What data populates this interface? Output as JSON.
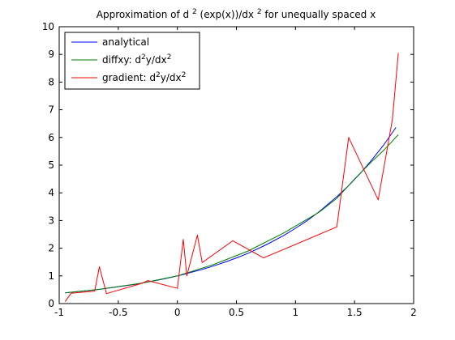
{
  "chart_data": {
    "type": "line",
    "title": {
      "prefix": "Approximation of d",
      "sup1": "2",
      "middle": "(exp(x))/dx",
      "sup2": "2",
      "suffix": " for unequally spaced x"
    },
    "xlabel": "",
    "ylabel": "",
    "xlim": [
      -1,
      2
    ],
    "ylim": [
      0,
      10
    ],
    "xticks": [
      -1,
      -0.5,
      0,
      0.5,
      1,
      1.5,
      2
    ],
    "xtick_labels": [
      "-1",
      "-0.5",
      "0",
      "0.5",
      "1",
      "1.5",
      "2"
    ],
    "yticks": [
      0,
      1,
      2,
      3,
      4,
      5,
      6,
      7,
      8,
      9,
      10
    ],
    "ytick_labels": [
      "0",
      "1",
      "2",
      "3",
      "4",
      "5",
      "6",
      "7",
      "8",
      "9",
      "10"
    ],
    "grid": false,
    "legend_position": "top-left",
    "series": [
      {
        "name": "analytical",
        "color": "#0000ff",
        "x": [
          -0.95,
          -0.85,
          -0.75,
          -0.65,
          -0.55,
          -0.45,
          -0.35,
          -0.25,
          -0.15,
          -0.05,
          0,
          0.05,
          0.1,
          0.2,
          0.3,
          0.4,
          0.5,
          0.6,
          0.75,
          0.9,
          1.0,
          1.1,
          1.2,
          1.35,
          1.45,
          1.55,
          1.65,
          1.75,
          1.85
        ],
        "y": [
          0.39,
          0.43,
          0.47,
          0.52,
          0.58,
          0.64,
          0.7,
          0.78,
          0.86,
          0.95,
          1.0,
          1.05,
          1.11,
          1.22,
          1.35,
          1.49,
          1.65,
          1.82,
          2.12,
          2.46,
          2.72,
          3.0,
          3.32,
          3.86,
          4.26,
          4.71,
          5.21,
          5.75,
          6.36
        ]
      },
      {
        "name": "diffxy: d²y/dx²",
        "label_parts": [
          "diffxy: d",
          "2",
          "y/dx",
          "2"
        ],
        "color": "#008000",
        "x": [
          -0.95,
          -0.65,
          -0.3,
          0,
          0.3,
          0.6,
          0.9,
          1.2,
          1.35,
          1.5,
          1.65,
          1.75,
          1.87
        ],
        "y": [
          0.39,
          0.52,
          0.74,
          1.0,
          1.4,
          1.9,
          2.55,
          3.3,
          3.8,
          4.5,
          5.15,
          5.55,
          6.1
        ]
      },
      {
        "name": "gradient: d²y/dx²",
        "label_parts": [
          "gradient: d",
          "2",
          "y/dx",
          "2"
        ],
        "color": "#ff0000",
        "x": [
          -0.95,
          -0.9,
          -0.7,
          -0.66,
          -0.6,
          -0.3,
          -0.25,
          0,
          0.05,
          0.08,
          0.17,
          0.21,
          0.47,
          0.73,
          1.35,
          1.45,
          1.7,
          1.82,
          1.87
        ],
        "y": [
          0.07,
          0.37,
          0.45,
          1.33,
          0.36,
          0.73,
          0.83,
          0.55,
          2.32,
          1.0,
          2.47,
          1.48,
          2.27,
          1.65,
          2.77,
          6.0,
          3.75,
          6.65,
          9.05
        ]
      }
    ]
  }
}
